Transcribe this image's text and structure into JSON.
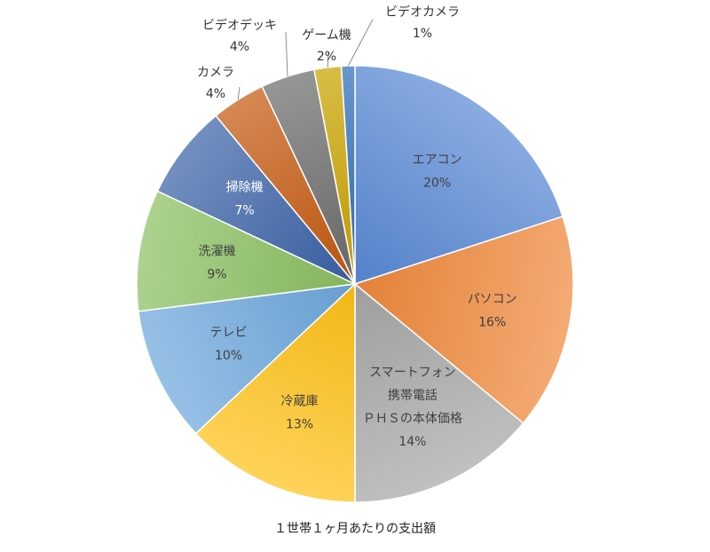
{
  "chart_data": {
    "type": "pie",
    "title": "",
    "caption": "１世帯１ヶ月あたりの支出額",
    "legend": "none",
    "slices": [
      {
        "name": "エアコン",
        "value": 20,
        "label": "20%",
        "color": "#5b8ad6"
      },
      {
        "name": "パソコン",
        "value": 16,
        "label": "16%",
        "color": "#f08a3e"
      },
      {
        "name": "スマートフォン\n携帯電話\nＰＨＳの本体価格",
        "value": 14,
        "label": "14%",
        "color": "#a8a8a8"
      },
      {
        "name": "冷蔵庫",
        "value": 13,
        "label": "13%",
        "color": "#ffc21a"
      },
      {
        "name": "テレビ",
        "value": 10,
        "label": "10%",
        "color": "#6fa8dc"
      },
      {
        "name": "洗濯機",
        "value": 9,
        "label": "9%",
        "color": "#8cc063"
      },
      {
        "name": "掃除機",
        "value": 7,
        "label": "7%",
        "color": "#3d63a8"
      },
      {
        "name": "カメラ",
        "value": 4,
        "label": "4%",
        "color": "#c55a11"
      },
      {
        "name": "ビデオデッキ",
        "value": 4,
        "label": "4%",
        "color": "#6d6d6d"
      },
      {
        "name": "ゲーム機",
        "value": 2,
        "label": "2%",
        "color": "#c9a400"
      },
      {
        "name": "ビデオカメラ",
        "value": 1,
        "label": "1%",
        "color": "#2e6fb8"
      }
    ]
  }
}
